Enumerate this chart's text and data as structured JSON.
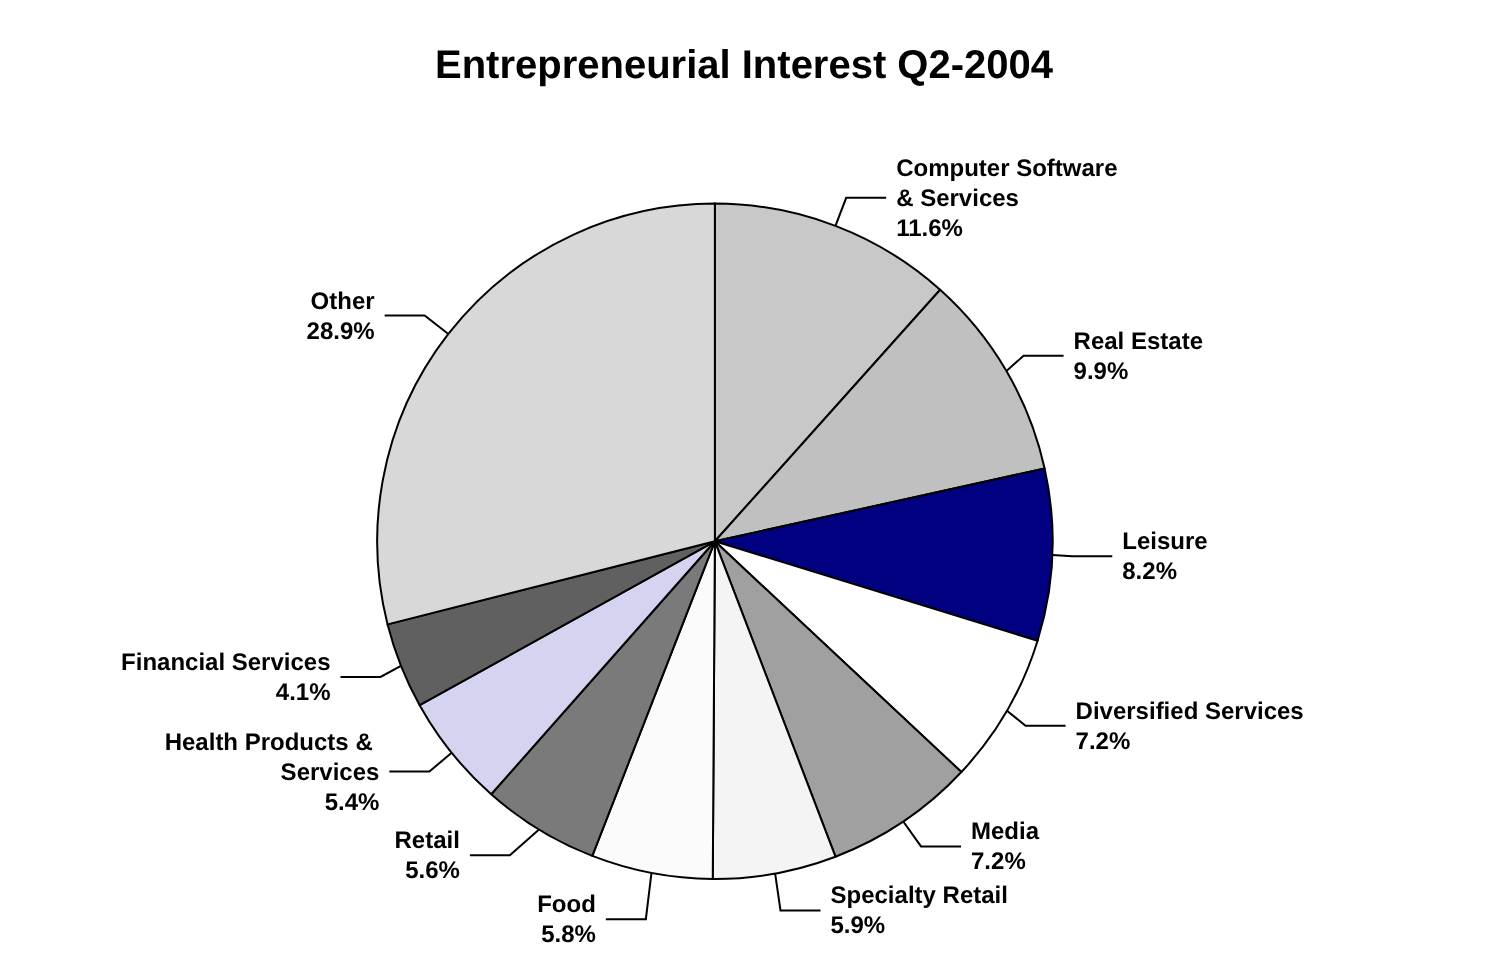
{
  "chart_data": {
    "type": "pie",
    "title": "Entrepreneurial Interest Q2-2004",
    "categories": [
      "Computer Software & Services",
      "Real Estate",
      "Leisure",
      "Diversified Services",
      "Media",
      "Specialty Retail",
      "Food",
      "Retail",
      "Health Products & Services",
      "Financial Services",
      "Other"
    ],
    "values": [
      11.6,
      9.9,
      8.2,
      7.2,
      7.2,
      5.9,
      5.8,
      5.6,
      5.4,
      4.1,
      28.9
    ],
    "value_labels": [
      "11.6%",
      "9.9%",
      "8.2%",
      "7.2%",
      "7.2%",
      "5.9%",
      "5.8%",
      "5.6%",
      "5.4%",
      "4.1%",
      "28.9%"
    ],
    "colors": [
      "#c8c8c8",
      "#c0c0c0",
      "#000080",
      "#ffffff",
      "#a0a0a0",
      "#f4f4f4",
      "#fbfbfb",
      "#7a7a7a",
      "#d4d4f0",
      "#606060",
      "#d8d8d8"
    ],
    "legend": false
  }
}
